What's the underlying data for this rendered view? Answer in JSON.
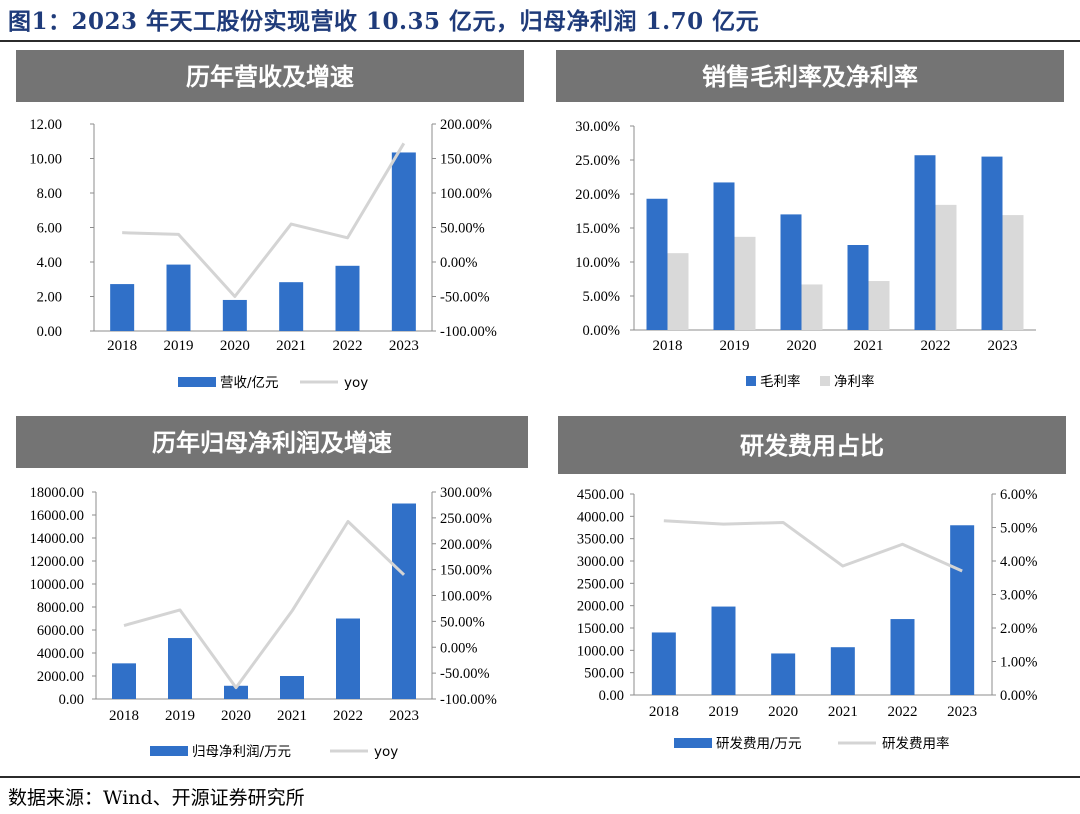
{
  "figure": {
    "title": "图1：2023 年天工股份实现营收 10.35 亿元，归母净利润 1.70 亿元",
    "source": "数据来源：Wind、开源证券研究所"
  },
  "colors": {
    "bar_primary": "#3070c8",
    "bar_secondary": "#d9d9d9",
    "line": "#d4d4d4",
    "banner_bg": "#747474",
    "banner_text": "#ffffff",
    "axis": "#8c8c8c"
  },
  "chart_data": [
    {
      "id": "revenue",
      "type": "bar+line",
      "title": "历年营收及增速",
      "categories": [
        "2018",
        "2019",
        "2020",
        "2021",
        "2022",
        "2023"
      ],
      "bar_series": [
        {
          "name": "营收/亿元",
          "values": [
            2.72,
            3.85,
            1.8,
            2.83,
            3.78,
            10.35
          ]
        }
      ],
      "line_series": {
        "name": "yoy",
        "values": [
          42.5,
          40.0,
          -50.0,
          55.0,
          35.0,
          172.0
        ]
      },
      "y_left": {
        "min": 0,
        "max": 12,
        "ticks": [
          "12.00",
          "10.00",
          "8.00",
          "6.00",
          "4.00",
          "2.00",
          "0.00"
        ]
      },
      "y_right": {
        "min": -100,
        "max": 200,
        "ticks": [
          "200.00%",
          "150.00%",
          "100.00%",
          "50.00%",
          "0.00%",
          "-50.00%",
          "-100.00%"
        ]
      },
      "legend": [
        "营收/亿元",
        "yoy"
      ]
    },
    {
      "id": "margin",
      "type": "grouped-bar",
      "title": "销售毛利率及净利率",
      "categories": [
        "2018",
        "2019",
        "2020",
        "2021",
        "2022",
        "2023"
      ],
      "bar_series": [
        {
          "name": "毛利率",
          "values": [
            19.3,
            21.7,
            17.0,
            12.5,
            25.7,
            25.5
          ]
        },
        {
          "name": "净利率",
          "values": [
            11.3,
            13.7,
            6.7,
            7.2,
            18.4,
            16.9
          ]
        }
      ],
      "y_left": {
        "min": 0,
        "max": 30,
        "ticks": [
          "30.00%",
          "25.00%",
          "20.00%",
          "15.00%",
          "10.00%",
          "5.00%",
          "0.00%"
        ]
      },
      "legend": [
        "毛利率",
        "净利率"
      ]
    },
    {
      "id": "netprofit",
      "type": "bar+line",
      "title": "历年归母净利润及增速",
      "categories": [
        "2018",
        "2019",
        "2020",
        "2021",
        "2022",
        "2023"
      ],
      "bar_series": [
        {
          "name": "归母净利润/万元",
          "values": [
            3100,
            5300,
            1150,
            2000,
            7000,
            17000
          ]
        }
      ],
      "line_series": {
        "name": "yoy",
        "values": [
          42.0,
          72.0,
          -78.0,
          70.0,
          243.0,
          140.0
        ]
      },
      "y_left": {
        "min": 0,
        "max": 18000,
        "ticks": [
          "18000.00",
          "16000.00",
          "14000.00",
          "12000.00",
          "10000.00",
          "8000.00",
          "6000.00",
          "4000.00",
          "2000.00",
          "0.00"
        ]
      },
      "y_right": {
        "min": -100,
        "max": 300,
        "ticks": [
          "300.00%",
          "250.00%",
          "200.00%",
          "150.00%",
          "100.00%",
          "50.00%",
          "0.00%",
          "-50.00%",
          "-100.00%"
        ]
      },
      "legend": [
        "归母净利润/万元",
        "yoy"
      ]
    },
    {
      "id": "rnd",
      "type": "bar+line",
      "title": "研发费用占比",
      "categories": [
        "2018",
        "2019",
        "2020",
        "2021",
        "2022",
        "2023"
      ],
      "bar_series": [
        {
          "name": "研发费用/万元",
          "values": [
            1400,
            1980,
            930,
            1070,
            1700,
            3800
          ]
        }
      ],
      "line_series": {
        "name": "研发费用率",
        "values": [
          5.2,
          5.1,
          5.15,
          3.85,
          4.5,
          3.7
        ]
      },
      "y_left": {
        "min": 0,
        "max": 4500,
        "ticks": [
          "4500.00",
          "4000.00",
          "3500.00",
          "3000.00",
          "2500.00",
          "2000.00",
          "1500.00",
          "1000.00",
          "500.00",
          "0.00"
        ]
      },
      "y_right": {
        "min": 0,
        "max": 6,
        "ticks": [
          "6.00%",
          "5.00%",
          "4.00%",
          "3.00%",
          "2.00%",
          "1.00%",
          "0.00%"
        ]
      },
      "legend": [
        "研发费用/万元",
        "研发费用率"
      ]
    }
  ]
}
